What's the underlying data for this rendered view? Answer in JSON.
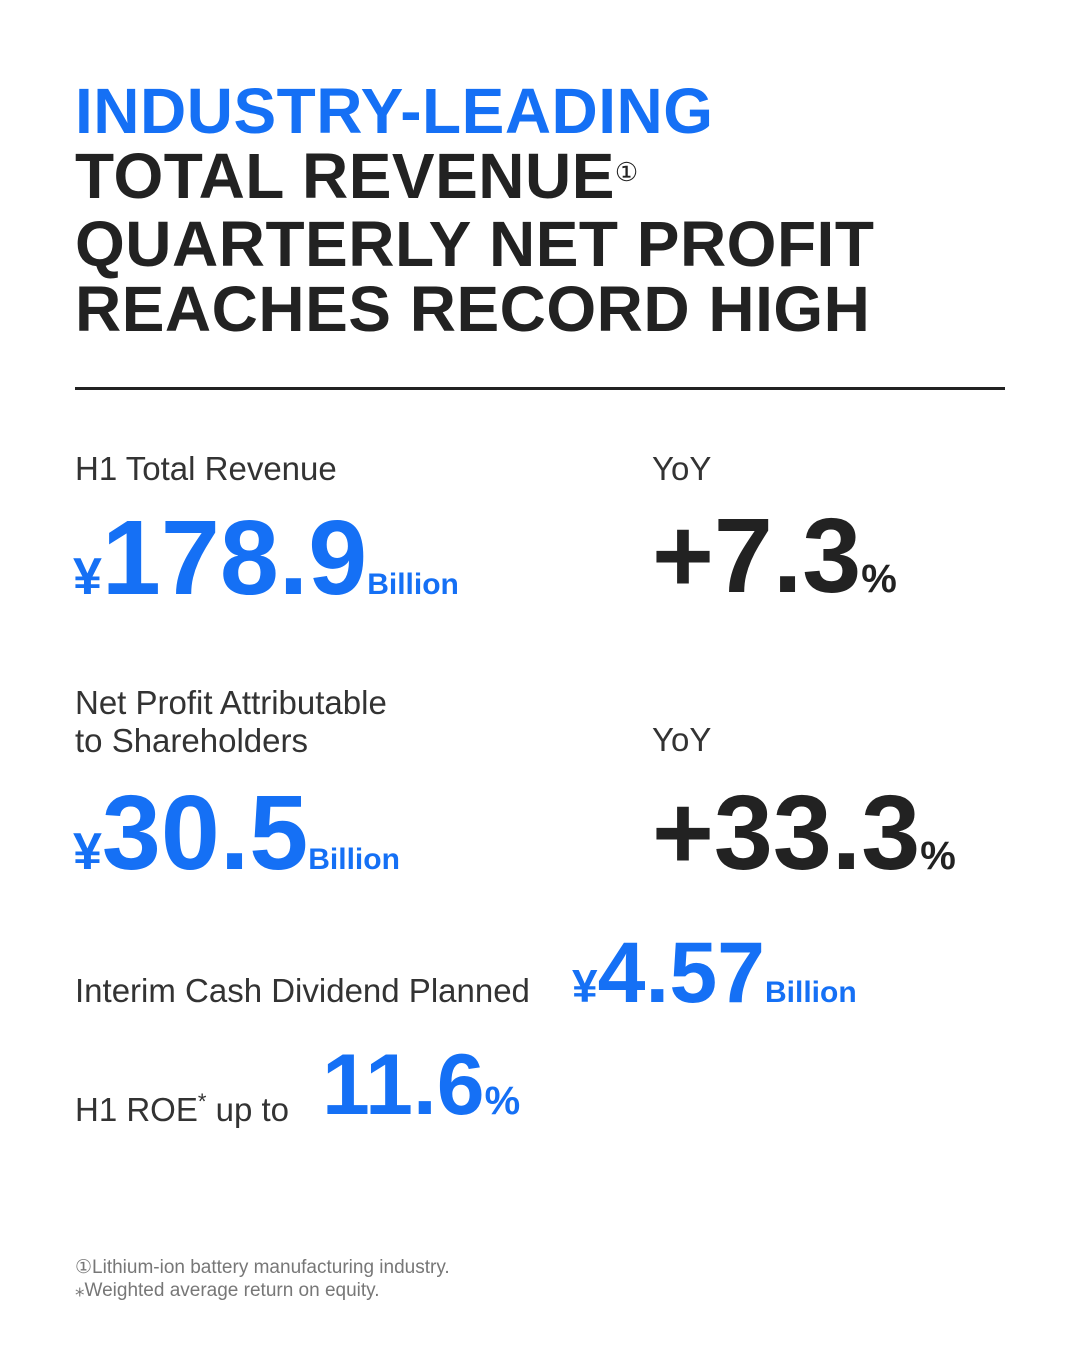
{
  "colors": {
    "accent": "#1570f5",
    "text": "#222222"
  },
  "headline": {
    "line1": "INDUSTRY-LEADING",
    "line2": "TOTAL REVENUE",
    "line2_note": "①",
    "line3": "QUARTERLY NET PROFIT",
    "line4": "REACHES RECORD HIGH"
  },
  "revenue": {
    "label": "H1 Total Revenue",
    "currency": "¥",
    "value": "178.9",
    "unit": "Billion",
    "yoy_label": "YoY",
    "yoy_value": "+7.3",
    "yoy_unit": "%"
  },
  "net_profit": {
    "label_line1": "Net Profit Attributable",
    "label_line2": "to Shareholders",
    "currency": "¥",
    "value": "30.5",
    "unit": "Billion",
    "yoy_label": "YoY",
    "yoy_value": "+33.3",
    "yoy_unit": "%"
  },
  "dividend": {
    "label": "Interim Cash Dividend Planned",
    "currency": "¥",
    "value": "4.57",
    "unit": "Billion"
  },
  "roe": {
    "label_prefix": "H1 ROE",
    "label_mark": "*",
    "label_suffix": "up to",
    "value": "11.6",
    "unit": "%"
  },
  "footnotes": [
    "①Lithium-ion battery manufacturing industry.",
    "⁎Weighted average return on equity."
  ]
}
